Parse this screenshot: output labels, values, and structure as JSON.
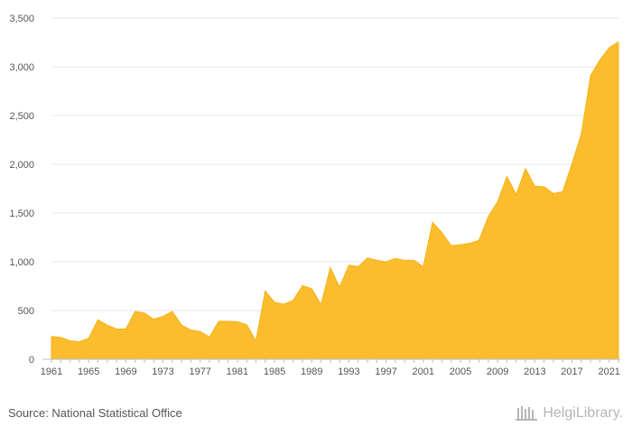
{
  "chart_data": {
    "type": "area",
    "title": "",
    "xlabel": "",
    "ylabel": "",
    "x_ticks": [
      "1961",
      "1965",
      "1969",
      "1973",
      "1977",
      "1981",
      "1985",
      "1989",
      "1993",
      "1997",
      "2001",
      "2005",
      "2009",
      "2013",
      "2017",
      "2021"
    ],
    "y_ticks": [
      "0",
      "500",
      "1,000",
      "1,500",
      "2,000",
      "2,500",
      "3,000",
      "3,500"
    ],
    "ylim": [
      0,
      3500
    ],
    "xlim": [
      1961,
      2022
    ],
    "grid": true,
    "legend": "none",
    "fill_color": "#fbbd2e",
    "x": [
      1961,
      1962,
      1963,
      1964,
      1965,
      1966,
      1967,
      1968,
      1969,
      1970,
      1971,
      1972,
      1973,
      1974,
      1975,
      1976,
      1977,
      1978,
      1979,
      1980,
      1981,
      1982,
      1983,
      1984,
      1985,
      1986,
      1987,
      1988,
      1989,
      1990,
      1991,
      1992,
      1993,
      1994,
      1995,
      1996,
      1997,
      1998,
      1999,
      2000,
      2001,
      2002,
      2003,
      2004,
      2005,
      2006,
      2007,
      2008,
      2009,
      2010,
      2011,
      2012,
      2013,
      2014,
      2015,
      2016,
      2017,
      2018,
      2019,
      2020,
      2021,
      2022
    ],
    "values": [
      235,
      225,
      190,
      180,
      215,
      405,
      350,
      310,
      310,
      490,
      475,
      410,
      440,
      490,
      350,
      300,
      285,
      230,
      390,
      390,
      385,
      355,
      190,
      700,
      585,
      565,
      605,
      755,
      725,
      560,
      940,
      740,
      965,
      950,
      1040,
      1015,
      1000,
      1035,
      1015,
      1015,
      950,
      1405,
      1300,
      1165,
      1175,
      1190,
      1220,
      1465,
      1615,
      1875,
      1690,
      1955,
      1775,
      1770,
      1700,
      1720,
      2005,
      2310,
      2910,
      3070,
      3195,
      3255
    ]
  },
  "footer": {
    "source": "Source: National Statistical Office",
    "logo_text": "HelgiLibrary."
  }
}
